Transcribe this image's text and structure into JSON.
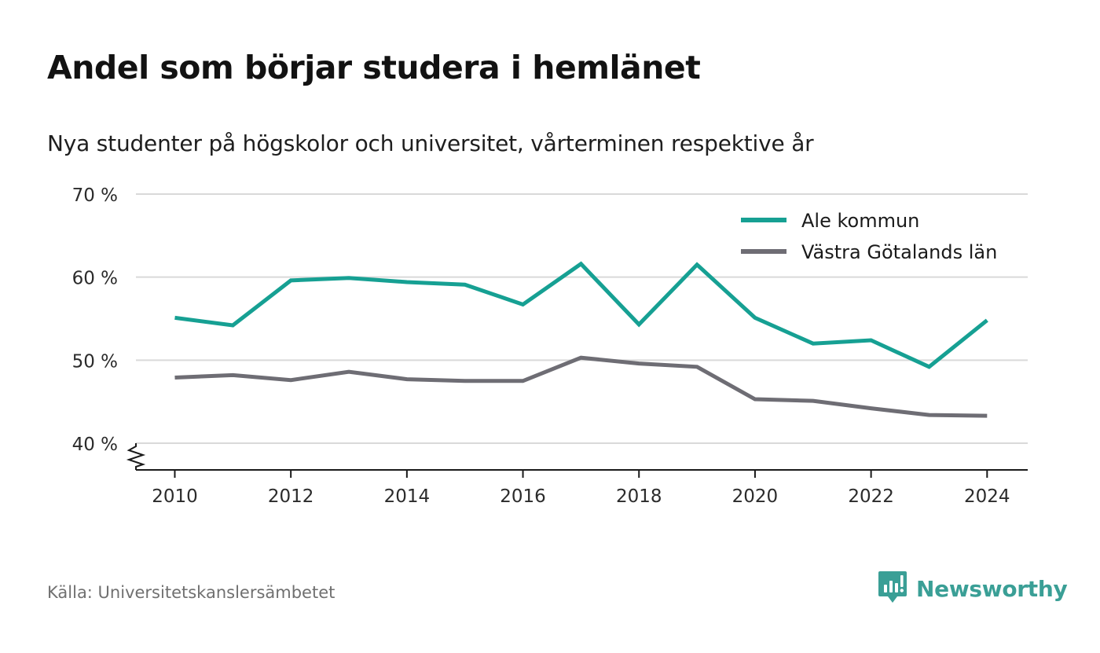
{
  "title": "Andel som börjar studera i hemlänet",
  "subtitle": "Nya studenter på högskolor och universitet, vårterminen respektive år",
  "source": "Källa: Universitetskanslersämbetet",
  "brand": {
    "name": "Newsworthy",
    "color": "#3a9f96",
    "icon": "newsworthy-logo-icon"
  },
  "colors": {
    "grid": "#d9d9d9",
    "axis": "#1a1a1a",
    "tick_text": "#2b2b2b"
  },
  "chart_data": {
    "type": "line",
    "title": "Andel som börjar studera i hemlänet",
    "subtitle": "Nya studenter på högskolor och universitet, vårterminen respektive år",
    "x": [
      2010,
      2011,
      2012,
      2013,
      2014,
      2015,
      2016,
      2017,
      2018,
      2019,
      2020,
      2021,
      2022,
      2023,
      2024
    ],
    "series": [
      {
        "name": "Ale kommun",
        "color": "#16a093",
        "values": [
          55.1,
          54.2,
          59.6,
          59.9,
          59.4,
          59.1,
          56.7,
          61.6,
          54.3,
          61.5,
          55.1,
          52.0,
          52.4,
          49.2,
          54.8
        ]
      },
      {
        "name": "Västra Götalands län",
        "color": "#6e6d74",
        "values": [
          47.9,
          48.2,
          47.6,
          48.6,
          47.7,
          47.5,
          47.5,
          50.3,
          49.6,
          49.2,
          45.3,
          45.1,
          44.2,
          43.4,
          43.3
        ]
      }
    ],
    "xticks": [
      2010,
      2012,
      2014,
      2016,
      2018,
      2020,
      2022,
      2024
    ],
    "xtick_labels": [
      "2010",
      "2012",
      "2014",
      "2016",
      "2018",
      "2020",
      "2022",
      "2024"
    ],
    "yticks": [
      40,
      50,
      60,
      70
    ],
    "ytick_labels": [
      "40 %",
      "50 %",
      "60 %",
      "70 %"
    ],
    "xlim": [
      2009.33,
      2024.7
    ],
    "ylim": [
      40,
      70
    ],
    "y_axis_break": true,
    "grid": "horizontal",
    "legend_position": "top-right",
    "xlabel": "",
    "ylabel": ""
  }
}
